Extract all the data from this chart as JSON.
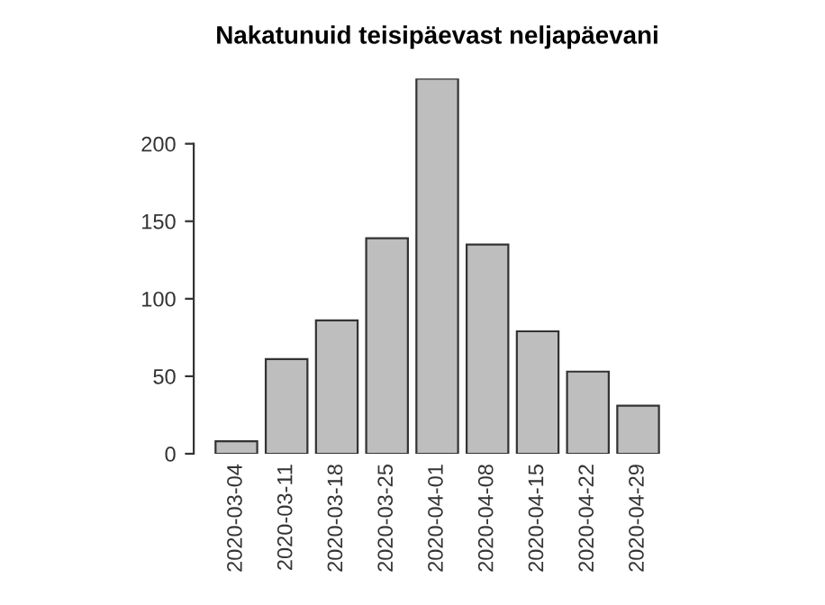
{
  "chart_data": {
    "type": "bar",
    "title": "Nakatunuid teisipäevast neljapäevani",
    "categories": [
      "2020-03-04",
      "2020-03-11",
      "2020-03-18",
      "2020-03-25",
      "2020-04-01",
      "2020-04-08",
      "2020-04-15",
      "2020-04-22",
      "2020-04-29"
    ],
    "values": [
      8,
      61,
      86,
      139,
      242,
      135,
      79,
      53,
      31
    ],
    "color": "#bebebe",
    "ylim": [
      0,
      242
    ],
    "yticks": [
      0,
      50,
      100,
      150,
      200
    ],
    "grid": false
  }
}
